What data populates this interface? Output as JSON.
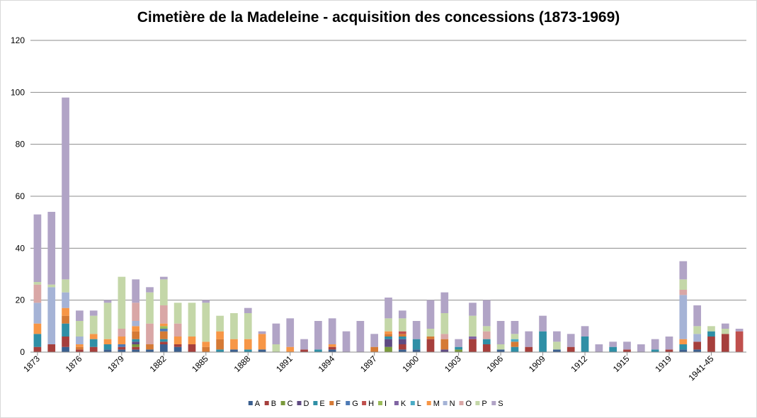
{
  "chart_data": {
    "type": "bar",
    "stacked": true,
    "title": "Cimetière de la Madeleine - acquisition des concessions (1873-1969)",
    "xlabel": "",
    "ylabel": "",
    "ylim": [
      0,
      120
    ],
    "yticks": [
      0,
      20,
      40,
      60,
      80,
      100,
      120
    ],
    "grid": true,
    "legend_position": "bottom",
    "categories": [
      "1873",
      "1874",
      "1875",
      "1876",
      "1877",
      "1878",
      "1879",
      "1880",
      "1881",
      "1882",
      "1883",
      "1884",
      "1885",
      "1886",
      "1887",
      "1888",
      "1889",
      "1890",
      "1891",
      "1892",
      "1893",
      "1894",
      "1895",
      "1896",
      "1897",
      "1898",
      "1899",
      "1900",
      "1901",
      "1902",
      "1903",
      "1904",
      "1905",
      "1906",
      "1907",
      "1908",
      "1909",
      "1910",
      "1911",
      "1912",
      "1913",
      "1914",
      "1915",
      "1916",
      "1917",
      "1919",
      "1920",
      "1921",
      "1941-45",
      "1946",
      "1969"
    ],
    "xtick_labels": [
      {
        "index": 0,
        "label": "1873"
      },
      {
        "index": 3,
        "label": "1876"
      },
      {
        "index": 6,
        "label": "1879"
      },
      {
        "index": 9,
        "label": "1882"
      },
      {
        "index": 12,
        "label": "1885"
      },
      {
        "index": 15,
        "label": "1888"
      },
      {
        "index": 18,
        "label": "1891"
      },
      {
        "index": 21,
        "label": "1894"
      },
      {
        "index": 24,
        "label": "1897"
      },
      {
        "index": 27,
        "label": "1900"
      },
      {
        "index": 30,
        "label": "1903"
      },
      {
        "index": 33,
        "label": "1906"
      },
      {
        "index": 36,
        "label": "1909"
      },
      {
        "index": 39,
        "label": "1912"
      },
      {
        "index": 42,
        "label": "1915"
      },
      {
        "index": 45,
        "label": "1919"
      },
      {
        "index": 48,
        "label": "1941-45"
      }
    ],
    "series": [
      {
        "name": "A",
        "color": "#3a5f8f",
        "values": [
          0,
          0,
          2,
          0,
          0,
          1,
          1,
          1,
          1,
          3,
          2,
          0,
          0,
          0,
          1,
          0,
          1,
          0,
          0,
          0,
          0,
          1,
          0,
          0,
          0,
          0,
          1,
          1,
          0,
          0,
          0,
          0,
          0,
          1,
          0,
          0,
          0,
          1,
          0,
          0,
          0,
          0,
          0,
          0,
          0,
          0,
          1,
          1,
          0,
          0,
          0
        ]
      },
      {
        "name": "B",
        "color": "#a63f3c",
        "values": [
          2,
          3,
          4,
          1,
          2,
          0,
          1,
          1,
          0,
          1,
          1,
          3,
          0,
          0,
          0,
          0,
          0,
          0,
          0,
          1,
          0,
          1,
          0,
          0,
          0,
          0,
          2,
          0,
          5,
          0,
          0,
          5,
          3,
          0,
          0,
          2,
          0,
          0,
          2,
          0,
          0,
          0,
          1,
          0,
          0,
          1,
          0,
          3,
          6,
          7,
          0
        ]
      },
      {
        "name": "C",
        "color": "#7a9a3c",
        "values": [
          0,
          0,
          0,
          0,
          0,
          0,
          0,
          1,
          0,
          0,
          0,
          0,
          0,
          0,
          0,
          0,
          0,
          0,
          0,
          0,
          0,
          0,
          0,
          0,
          0,
          2,
          0,
          0,
          0,
          0,
          1,
          0,
          0,
          0,
          0,
          0,
          0,
          0,
          0,
          0,
          0,
          0,
          0,
          0,
          0,
          0,
          0,
          0,
          0,
          0,
          0
        ]
      },
      {
        "name": "D",
        "color": "#5f4a82",
        "values": [
          0,
          0,
          0,
          0,
          0,
          0,
          0,
          1,
          0,
          0,
          0,
          0,
          0,
          0,
          0,
          0,
          0,
          0,
          0,
          0,
          0,
          0,
          0,
          0,
          0,
          3,
          2,
          0,
          0,
          1,
          0,
          0,
          0,
          0,
          0,
          0,
          0,
          0,
          0,
          0,
          0,
          0,
          0,
          0,
          0,
          0,
          0,
          0,
          0,
          0,
          0
        ]
      },
      {
        "name": "E",
        "color": "#2f8fa6",
        "values": [
          5,
          0,
          5,
          0,
          3,
          2,
          0,
          1,
          0,
          1,
          0,
          0,
          0,
          1,
          0,
          1,
          0,
          0,
          0,
          0,
          1,
          0,
          0,
          0,
          0,
          1,
          1,
          4,
          0,
          0,
          1,
          0,
          2,
          0,
          2,
          0,
          8,
          0,
          0,
          6,
          0,
          2,
          0,
          0,
          1,
          0,
          2,
          0,
          2,
          0,
          0
        ]
      },
      {
        "name": "F",
        "color": "#d57a35",
        "values": [
          0,
          0,
          3,
          1,
          0,
          0,
          0,
          3,
          2,
          3,
          0,
          0,
          2,
          4,
          0,
          0,
          0,
          0,
          0,
          0,
          0,
          0,
          0,
          0,
          2,
          1,
          1,
          0,
          1,
          4,
          0,
          0,
          0,
          0,
          2,
          0,
          0,
          0,
          0,
          0,
          0,
          0,
          0,
          0,
          0,
          0,
          0,
          0,
          0,
          0,
          0
        ]
      },
      {
        "name": "G",
        "color": "#4d7ab5",
        "values": [
          0,
          0,
          0,
          0,
          0,
          0,
          1,
          0,
          0,
          1,
          0,
          0,
          0,
          0,
          0,
          0,
          0,
          0,
          0,
          0,
          0,
          0,
          0,
          0,
          0,
          0,
          0,
          0,
          0,
          0,
          0,
          0,
          0,
          0,
          0,
          0,
          0,
          0,
          0,
          0,
          0,
          0,
          0,
          0,
          0,
          0,
          0,
          0,
          0,
          0,
          0
        ]
      },
      {
        "name": "H",
        "color": "#c0504d",
        "values": [
          0,
          0,
          0,
          0,
          0,
          0,
          0,
          0,
          0,
          0,
          0,
          0,
          0,
          0,
          0,
          0,
          0,
          0,
          0,
          0,
          0,
          0,
          0,
          0,
          0,
          0,
          1,
          0,
          0,
          0,
          0,
          0,
          0,
          0,
          0,
          0,
          0,
          0,
          0,
          0,
          0,
          0,
          0,
          0,
          0,
          0,
          0,
          0,
          0,
          0,
          8
        ]
      },
      {
        "name": "I",
        "color": "#9bbb59",
        "values": [
          0,
          0,
          0,
          0,
          0,
          0,
          0,
          0,
          0,
          1,
          0,
          0,
          0,
          0,
          0,
          0,
          0,
          0,
          0,
          0,
          0,
          0,
          0,
          0,
          0,
          0,
          0,
          0,
          0,
          0,
          0,
          0,
          0,
          0,
          0,
          0,
          0,
          0,
          0,
          0,
          0,
          0,
          0,
          0,
          0,
          0,
          0,
          0,
          0,
          0,
          0
        ]
      },
      {
        "name": "K",
        "color": "#8064a2",
        "values": [
          0,
          0,
          0,
          0,
          0,
          0,
          0,
          0,
          0,
          0,
          0,
          0,
          0,
          0,
          0,
          0,
          0,
          0,
          0,
          0,
          0,
          0,
          0,
          0,
          0,
          0,
          0,
          0,
          0,
          0,
          0,
          1,
          0,
          0,
          0,
          0,
          0,
          0,
          0,
          0,
          0,
          0,
          0,
          0,
          0,
          0,
          0,
          0,
          0,
          0,
          0
        ]
      },
      {
        "name": "L",
        "color": "#4bacc6",
        "values": [
          0,
          0,
          0,
          0,
          0,
          0,
          0,
          0,
          0,
          0,
          0,
          0,
          0,
          0,
          0,
          0,
          0,
          0,
          0,
          0,
          0,
          0,
          0,
          0,
          0,
          0,
          0,
          0,
          0,
          0,
          0,
          0,
          0,
          0,
          1,
          0,
          0,
          0,
          0,
          0,
          0,
          0,
          0,
          0,
          0,
          0,
          0,
          0,
          0,
          0,
          0
        ]
      },
      {
        "name": "M",
        "color": "#f79646",
        "values": [
          4,
          0,
          3,
          1,
          2,
          2,
          3,
          2,
          0,
          1,
          3,
          3,
          2,
          3,
          4,
          4,
          6,
          0,
          2,
          0,
          0,
          1,
          0,
          0,
          0,
          1,
          0,
          0,
          0,
          0,
          0,
          0,
          0,
          0,
          0,
          0,
          0,
          0,
          0,
          0,
          0,
          0,
          0,
          0,
          0,
          0,
          2,
          0,
          0,
          0,
          0
        ]
      },
      {
        "name": "N",
        "color": "#a5b3d6",
        "values": [
          8,
          22,
          6,
          3,
          0,
          0,
          0,
          2,
          0,
          0,
          0,
          0,
          0,
          0,
          0,
          0,
          0,
          0,
          0,
          0,
          0,
          0,
          0,
          0,
          0,
          0,
          0,
          0,
          0,
          0,
          0,
          0,
          0,
          0,
          0,
          0,
          0,
          0,
          0,
          0,
          0,
          0,
          0,
          0,
          0,
          0,
          17,
          3,
          0,
          0,
          0
        ]
      },
      {
        "name": "O",
        "color": "#d9a7a6",
        "values": [
          7,
          0,
          0,
          0,
          0,
          0,
          3,
          7,
          8,
          7,
          5,
          0,
          0,
          0,
          0,
          0,
          0,
          0,
          0,
          0,
          0,
          0,
          0,
          0,
          0,
          0,
          0,
          0,
          0,
          2,
          0,
          0,
          3,
          0,
          0,
          0,
          0,
          0,
          0,
          0,
          0,
          0,
          0,
          0,
          0,
          0,
          2,
          0,
          0,
          0,
          0
        ]
      },
      {
        "name": "P",
        "color": "#c4d7a8",
        "values": [
          1,
          1,
          5,
          6,
          7,
          14,
          20,
          0,
          12,
          10,
          8,
          13,
          15,
          6,
          10,
          10,
          0,
          3,
          0,
          0,
          0,
          0,
          0,
          0,
          0,
          5,
          5,
          0,
          3,
          8,
          0,
          8,
          2,
          2,
          2,
          0,
          0,
          3,
          0,
          0,
          0,
          0,
          0,
          0,
          0,
          0,
          4,
          3,
          2,
          2,
          0
        ]
      },
      {
        "name": "S",
        "color": "#b1a4c6",
        "values": [
          26,
          28,
          70,
          4,
          2,
          1,
          0,
          9,
          2,
          1,
          0,
          0,
          1,
          0,
          0,
          2,
          1,
          8,
          11,
          4,
          11,
          10,
          8,
          12,
          5,
          8,
          3,
          7,
          11,
          8,
          3,
          5,
          10,
          9,
          5,
          6,
          6,
          4,
          5,
          4,
          3,
          2,
          3,
          3,
          4,
          5,
          7,
          8,
          0,
          2,
          1
        ]
      }
    ]
  }
}
